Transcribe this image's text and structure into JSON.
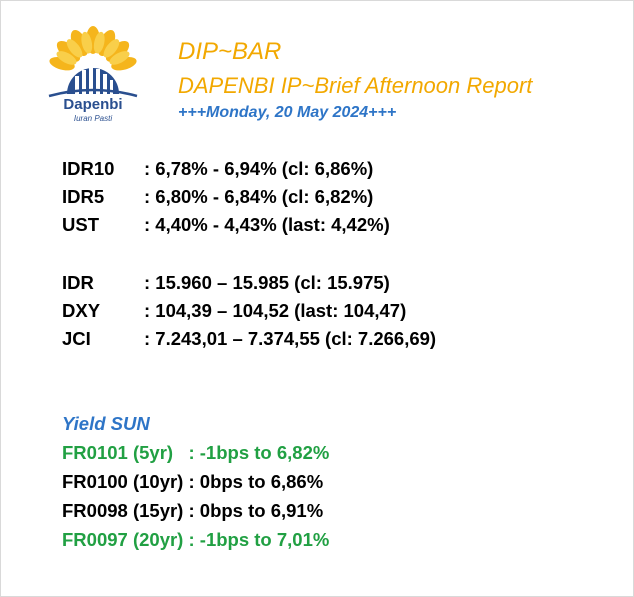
{
  "brand": {
    "logo_name": "Dapenbi",
    "logo_tagline": "Iuran Pasti",
    "colors": {
      "gold": "#f2a800",
      "blue": "#2e75c7",
      "green": "#21a043",
      "navy": "#2a4f8f"
    }
  },
  "header": {
    "title": "DIP~BAR",
    "subtitle": "DAPENBI IP~Brief Afternoon Report",
    "dateline": "+++Monday, 20 May 2024+++"
  },
  "rates": [
    {
      "label": "IDR10",
      "value": ": 6,78% - 6,94% (cl: 6,86%)"
    },
    {
      "label": "IDR5",
      "value": ": 6,80% - 6,84% (cl: 6,82%)"
    },
    {
      "label": "UST",
      "value": ": 4,40% - 4,43% (last: 4,42%)"
    }
  ],
  "markets": [
    {
      "label": "IDR",
      "value": ": 15.960 – 15.985 (cl: 15.975)"
    },
    {
      "label": "DXY",
      "value": ": 104,39 – 104,52 (last: 104,47)"
    },
    {
      "label": "JCI",
      "value": ": 7.243,01 – 7.374,55 (cl: 7.266,69)"
    }
  ],
  "yield_sun": {
    "title": "Yield SUN",
    "items": [
      {
        "text": "FR0101 (5yr)   : -1bps to 6,82%",
        "color": "green"
      },
      {
        "text": "FR0100 (10yr) : 0bps to 6,86%",
        "color": "black"
      },
      {
        "text": "FR0098 (15yr) : 0bps to 6,91%",
        "color": "black"
      },
      {
        "text": "FR0097 (20yr) : -1bps to 7,01%",
        "color": "green"
      }
    ]
  }
}
